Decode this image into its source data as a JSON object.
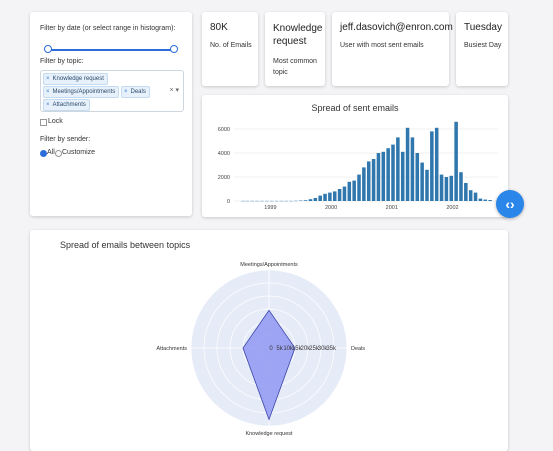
{
  "filters": {
    "date_label": "Filter by date (or select range in histogram):",
    "topic_label": "Filter by topic:",
    "topic_tags": [
      "Knowledge request",
      "Meetings/Appointments",
      "Deals",
      "Attachments"
    ],
    "clear_glyph": "×",
    "dropdown_glyph": "▾",
    "lock_label": "Lock",
    "sender_label": "Filter by sender:",
    "sender_options": [
      "All",
      "Customize"
    ],
    "sender_selected": "All"
  },
  "stats": [
    {
      "value": "80K",
      "label": "No. of Emails"
    },
    {
      "value": "Knowledge request",
      "label": "Most common topic"
    },
    {
      "value": "jeff.dasovich@enron.com",
      "label": "User with most sent emails"
    },
    {
      "value": "Tuesday",
      "label": "Busiest Day"
    }
  ],
  "histogram": {
    "title": "Spread of sent emails",
    "chart_data": {
      "type": "bar",
      "title": "Spread of sent emails",
      "xlabel": "",
      "ylabel": "",
      "ylim": [
        0,
        6500
      ],
      "yticks": [
        "0",
        "2000",
        "4000",
        "6000"
      ],
      "xticks": [
        "1999",
        "2000",
        "2001",
        "2002"
      ],
      "xtick_values": [
        1999,
        2000,
        2001,
        2002
      ],
      "xlim": [
        1998.4,
        2002.75
      ],
      "bar_width": 0.058,
      "x": [
        1998.55,
        1998.62,
        1998.7,
        1998.78,
        1998.86,
        1998.94,
        1999.02,
        1999.1,
        1999.18,
        1999.26,
        1999.34,
        1999.42,
        1999.5,
        1999.58,
        1999.66,
        1999.74,
        1999.82,
        1999.9,
        1999.98,
        2000.06,
        2000.14,
        2000.22,
        2000.3,
        2000.38,
        2000.46,
        2000.54,
        2000.62,
        2000.7,
        2000.78,
        2000.86,
        2000.94,
        2001.02,
        2001.1,
        2001.18,
        2001.26,
        2001.34,
        2001.42,
        2001.5,
        2001.58,
        2001.66,
        2001.74,
        2001.82,
        2001.9,
        2001.98,
        2002.06,
        2002.14,
        2002.22,
        2002.3,
        2002.38,
        2002.46,
        2002.54,
        2002.62
      ],
      "values": [
        10,
        10,
        10,
        10,
        10,
        10,
        10,
        10,
        10,
        10,
        10,
        20,
        40,
        60,
        150,
        250,
        450,
        600,
        700,
        800,
        1000,
        1200,
        1600,
        1700,
        2200,
        2800,
        3300,
        3500,
        4000,
        4100,
        4400,
        4700,
        5300,
        4100,
        6100,
        5300,
        4000,
        3200,
        2600,
        5800,
        6100,
        2200,
        2000,
        2100,
        6600,
        2400,
        1500,
        900,
        700,
        200,
        120,
        80
      ]
    }
  },
  "radar": {
    "title": "Spread of emails between topics",
    "chart_data": {
      "type": "radar",
      "axes": [
        "Meetings/Appointments",
        "Deals",
        "Knowledge request",
        "Attachments"
      ],
      "values": [
        29000,
        20000,
        55000,
        20000
      ],
      "radial_ticks": [
        "0",
        "5k",
        "10k",
        "15k",
        "20k",
        "25k",
        "30k",
        "35k"
      ],
      "radial_max": 60000,
      "fill_color": "#8f98f2",
      "line_color": "#3b44a8"
    }
  },
  "colors": {
    "accent": "#2a6ddb",
    "bar": "#2f77ad",
    "polar_bg": "#e6ebf8"
  },
  "icons": {
    "toggle": "double-chevron-icon"
  }
}
